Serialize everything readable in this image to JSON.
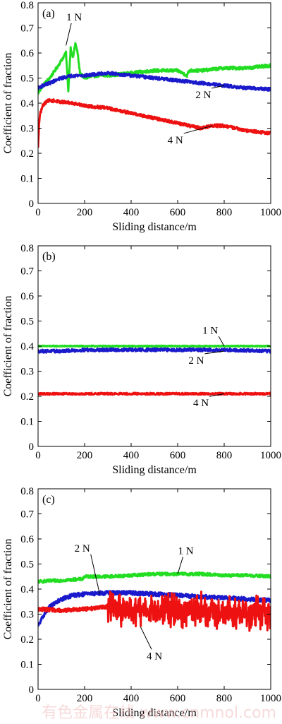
{
  "chart_data": [
    {
      "type": "line",
      "panel_label": "(a)",
      "xlabel": "Sliding distance/m",
      "ylabel": "Coefficient of fraction",
      "xlim": [
        0,
        1000
      ],
      "ylim": [
        0,
        0.8
      ],
      "xticks": [
        0,
        200,
        400,
        600,
        800,
        1000
      ],
      "yticks": [
        0,
        0.1,
        0.2,
        0.3,
        0.4,
        0.5,
        0.6,
        0.7,
        0.8
      ],
      "grid": false,
      "series": [
        {
          "name": "1 N",
          "color": "#22dd22",
          "noise": 0.006,
          "x": [
            0,
            20,
            50,
            80,
            100,
            120,
            130,
            140,
            150,
            160,
            170,
            180,
            200,
            250,
            300,
            400,
            500,
            600,
            640,
            650,
            700,
            800,
            900,
            1000
          ],
          "y": [
            0.44,
            0.47,
            0.5,
            0.54,
            0.57,
            0.6,
            0.45,
            0.62,
            0.58,
            0.64,
            0.6,
            0.52,
            0.5,
            0.51,
            0.51,
            0.52,
            0.53,
            0.53,
            0.51,
            0.53,
            0.53,
            0.54,
            0.54,
            0.55
          ]
        },
        {
          "name": "2 N",
          "color": "#1a1acc",
          "noise": 0.006,
          "x": [
            0,
            20,
            50,
            100,
            150,
            200,
            300,
            400,
            500,
            600,
            700,
            800,
            900,
            1000
          ],
          "y": [
            0.46,
            0.47,
            0.48,
            0.5,
            0.51,
            0.51,
            0.52,
            0.51,
            0.5,
            0.49,
            0.48,
            0.47,
            0.46,
            0.455
          ]
        },
        {
          "name": "4 N",
          "color": "#ee1111",
          "noise": 0.006,
          "x": [
            0,
            5,
            10,
            20,
            40,
            60,
            100,
            150,
            200,
            300,
            400,
            500,
            600,
            700,
            750,
            800,
            850,
            900,
            1000
          ],
          "y": [
            0.22,
            0.33,
            0.36,
            0.39,
            0.41,
            0.41,
            0.405,
            0.4,
            0.39,
            0.38,
            0.36,
            0.34,
            0.32,
            0.3,
            0.31,
            0.31,
            0.3,
            0.29,
            0.28
          ]
        }
      ],
      "annotations": [
        {
          "text": "1 N",
          "label_x": 155,
          "label_y": 0.73,
          "point_x": 120,
          "point_y": 0.63
        },
        {
          "text": "2 N",
          "label_x": 710,
          "label_y": 0.42,
          "point_x": 800,
          "point_y": 0.47
        },
        {
          "text": "4 N",
          "label_x": 590,
          "label_y": 0.24,
          "point_x": 750,
          "point_y": 0.31
        }
      ]
    },
    {
      "type": "line",
      "panel_label": "(b)",
      "xlabel": "Sliding distance/m",
      "ylabel": "Coefficient of fraction",
      "xlim": [
        0,
        1000
      ],
      "ylim": [
        0,
        0.8
      ],
      "xticks": [
        0,
        200,
        400,
        600,
        800,
        1000
      ],
      "yticks": [
        0,
        0.1,
        0.2,
        0.3,
        0.4,
        0.5,
        0.6,
        0.7,
        0.8
      ],
      "grid": false,
      "series": [
        {
          "name": "1 N",
          "color": "#22dd22",
          "noise": 0.002,
          "x": [
            0,
            200,
            400,
            600,
            800,
            1000
          ],
          "y": [
            0.4,
            0.4,
            0.4,
            0.4,
            0.4,
            0.4
          ]
        },
        {
          "name": "2 N",
          "color": "#1a1acc",
          "noise": 0.006,
          "x": [
            0,
            100,
            200,
            400,
            600,
            800,
            1000
          ],
          "y": [
            0.38,
            0.38,
            0.385,
            0.385,
            0.385,
            0.385,
            0.38
          ]
        },
        {
          "name": "4 N",
          "color": "#ee1111",
          "noise": 0.004,
          "x": [
            0,
            200,
            400,
            600,
            800,
            1000
          ],
          "y": [
            0.21,
            0.21,
            0.21,
            0.21,
            0.21,
            0.21
          ]
        }
      ],
      "annotations": [
        {
          "text": "1 N",
          "label_x": 740,
          "label_y": 0.45,
          "point_x": 800,
          "point_y": 0.4
        },
        {
          "text": "2 N",
          "label_x": 680,
          "label_y": 0.33,
          "point_x": 800,
          "point_y": 0.38
        },
        {
          "text": "4 N",
          "label_x": 700,
          "label_y": 0.16,
          "point_x": 800,
          "point_y": 0.21
        }
      ]
    },
    {
      "type": "line",
      "panel_label": "(c)",
      "xlabel": "Sliding distance/m",
      "ylabel": "Coefficient of fraction",
      "xlim": [
        0,
        1000
      ],
      "ylim": [
        0,
        0.8
      ],
      "xticks": [
        0,
        200,
        400,
        600,
        800,
        1000
      ],
      "yticks": [
        0,
        0.1,
        0.2,
        0.3,
        0.4,
        0.5,
        0.6,
        0.7,
        0.8
      ],
      "grid": false,
      "series": [
        {
          "name": "1 N",
          "color": "#22dd22",
          "noise": 0.006,
          "x": [
            0,
            100,
            190,
            200,
            300,
            400,
            500,
            600,
            700,
            800,
            900,
            1000
          ],
          "y": [
            0.43,
            0.435,
            0.44,
            0.45,
            0.45,
            0.455,
            0.46,
            0.46,
            0.46,
            0.455,
            0.455,
            0.45
          ]
        },
        {
          "name": "2 N",
          "color": "#1a1acc",
          "noise": 0.008,
          "x": [
            0,
            20,
            50,
            100,
            150,
            200,
            300,
            400,
            500,
            600,
            700,
            800,
            900,
            1000
          ],
          "y": [
            0.25,
            0.29,
            0.33,
            0.36,
            0.375,
            0.38,
            0.385,
            0.385,
            0.38,
            0.375,
            0.37,
            0.365,
            0.36,
            0.355
          ]
        },
        {
          "name": "4 N",
          "color": "#ee1111",
          "noise": 0.008,
          "burst_noise": 0.08,
          "burst_from": 300,
          "x": [
            0,
            100,
            200,
            300,
            400,
            500,
            600,
            700,
            800,
            900,
            1000
          ],
          "y": [
            0.32,
            0.315,
            0.32,
            0.33,
            0.32,
            0.31,
            0.32,
            0.32,
            0.31,
            0.31,
            0.3
          ]
        }
      ],
      "annotations": [
        {
          "text": "1 N",
          "label_x": 635,
          "label_y": 0.54,
          "point_x": 600,
          "point_y": 0.46
        },
        {
          "text": "2 N",
          "label_x": 190,
          "label_y": 0.55,
          "point_x": 265,
          "point_y": 0.38
        },
        {
          "text": "4 N",
          "label_x": 500,
          "label_y": 0.12,
          "point_x": 440,
          "point_y": 0.25
        }
      ]
    }
  ],
  "watermark": "有色金属在线 www.cnmnol.com"
}
